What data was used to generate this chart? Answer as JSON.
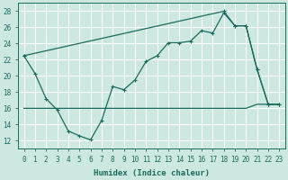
{
  "xlabel": "Humidex (Indice chaleur)",
  "bg_color": "#cce8e0",
  "line_color": "#1a6b5e",
  "grid_color": "#ffffff",
  "xlim": [
    -0.5,
    23.5
  ],
  "ylim": [
    11,
    29
  ],
  "yticks": [
    12,
    14,
    16,
    18,
    20,
    22,
    24,
    26,
    28
  ],
  "xticks": [
    0,
    1,
    2,
    3,
    4,
    5,
    6,
    7,
    8,
    9,
    10,
    11,
    12,
    13,
    14,
    15,
    16,
    17,
    18,
    19,
    20,
    21,
    22,
    23
  ],
  "line1_x": [
    0,
    1,
    2,
    3,
    4,
    5,
    6,
    7,
    8,
    9,
    10,
    11,
    12,
    13,
    14,
    15,
    16,
    17,
    18,
    19,
    20,
    21,
    22,
    23
  ],
  "line1_y": [
    16,
    16,
    16,
    16,
    16,
    16,
    16,
    16,
    16,
    16,
    16,
    16,
    16,
    16,
    16,
    16,
    16,
    16,
    16,
    16,
    16,
    16.5,
    16.5,
    16.5
  ],
  "line2_x": [
    0,
    1,
    2,
    3,
    4,
    5,
    6,
    7,
    8,
    9,
    10,
    11,
    12,
    13,
    14,
    15,
    16,
    17,
    18,
    19,
    20,
    21,
    22,
    23
  ],
  "line2_y": [
    22.5,
    20.3,
    17.2,
    15.8,
    13.2,
    12.6,
    12.1,
    14.5,
    18.7,
    18.3,
    19.5,
    21.8,
    22.5,
    24.1,
    24.1,
    24.3,
    25.6,
    25.3,
    27.8,
    26.2,
    26.2,
    20.8,
    16.5,
    16.5
  ],
  "line3_x": [
    0,
    18,
    19,
    20,
    21,
    22,
    23
  ],
  "line3_y": [
    22.5,
    28.0,
    26.2,
    26.2,
    20.8,
    16.5,
    16.5
  ]
}
